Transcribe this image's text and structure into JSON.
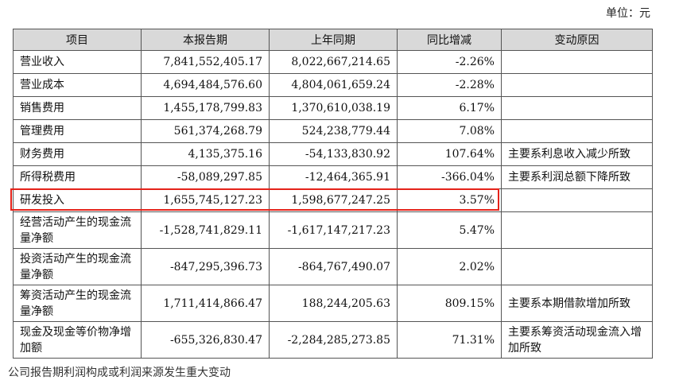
{
  "unit_label": "单位：元",
  "headers": [
    "项目",
    "本报告期",
    "上年同期",
    "同比增减",
    "变动原因"
  ],
  "rows": [
    {
      "item": "营业收入",
      "current": "7,841,552,405.17",
      "prior": "8,022,667,214.65",
      "change": "-2.26%",
      "reason": ""
    },
    {
      "item": "营业成本",
      "current": "4,694,484,576.60",
      "prior": "4,804,061,659.24",
      "change": "-2.28%",
      "reason": ""
    },
    {
      "item": "销售费用",
      "current": "1,455,178,799.83",
      "prior": "1,370,610,038.19",
      "change": "6.17%",
      "reason": ""
    },
    {
      "item": "管理费用",
      "current": "561,374,268.79",
      "prior": "524,238,779.44",
      "change": "7.08%",
      "reason": ""
    },
    {
      "item": "财务费用",
      "current": "4,135,375.16",
      "prior": "-54,133,830.92",
      "change": "107.64%",
      "reason": "主要系利息收入减少所致"
    },
    {
      "item": "所得税费用",
      "current": "-58,089,297.85",
      "prior": "-12,464,365.91",
      "change": "-366.04%",
      "reason": "主要系利润总额下降所致"
    },
    {
      "item": "研发投入",
      "current": "1,655,745,127.23",
      "prior": "1,598,677,247.25",
      "change": "3.57%",
      "reason": ""
    },
    {
      "item": "经营活动产生的现金流量净额",
      "current": "-1,528,741,829.11",
      "prior": "-1,617,147,217.23",
      "change": "5.47%",
      "reason": ""
    },
    {
      "item": "投资活动产生的现金流量净额",
      "current": "-847,295,396.73",
      "prior": "-864,767,490.07",
      "change": "2.02%",
      "reason": ""
    },
    {
      "item": "筹资活动产生的现金流量净额",
      "current": "1,711,414,866.47",
      "prior": "188,244,205.63",
      "change": "809.15%",
      "reason": "主要系本期借款增加所致"
    },
    {
      "item": "现金及现金等价物净增加额",
      "current": "-655,326,830.47",
      "prior": "-2,284,285,273.85",
      "change": "71.31%",
      "reason": "主要系筹资活动现金流入增加所致"
    }
  ],
  "footer_text": "公司报告期利润构成或利润来源发生重大变动"
}
